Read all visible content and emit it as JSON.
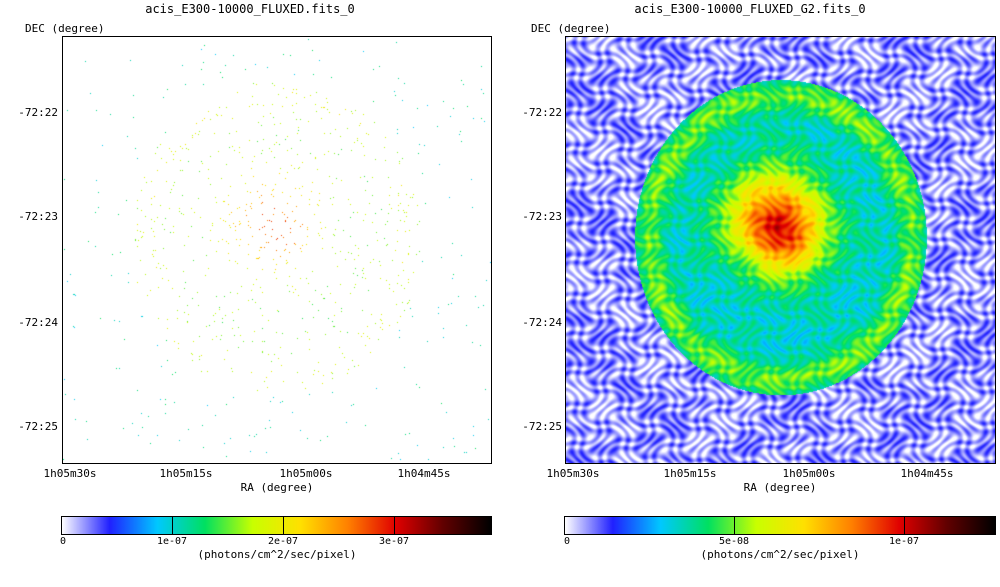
{
  "left_panel": {
    "title": "acis_E300-10000_FLUXED.fits_0",
    "y_axis_label": "DEC (degree)",
    "x_axis_label": "RA (degree)",
    "y_ticks": [
      "-72:22",
      "-72:23",
      "-72:24",
      "-72:25"
    ],
    "x_ticks": [
      "1h05m30s",
      "1h05m15s",
      "1h05m00s",
      "1h04m45s"
    ],
    "colorbar": {
      "units": "(photons/cm^2/sec/pixel)",
      "ticks": [
        "0",
        "1e-07",
        "2e-07",
        "3e-07"
      ]
    }
  },
  "right_panel": {
    "title": "acis_E300-10000_FLUXED_G2.fits_0",
    "y_axis_label": "DEC (degree)",
    "x_axis_label": "RA (degree)",
    "y_ticks": [
      "-72:22",
      "-72:23",
      "-72:24",
      "-72:25"
    ],
    "x_ticks": [
      "1h05m30s",
      "1h05m15s",
      "1h05m00s",
      "1h04m45s"
    ],
    "colorbar": {
      "units": "(photons/cm^2/sec/pixel)",
      "ticks": [
        "0",
        "5e-08",
        "1e-07"
      ]
    }
  },
  "colormap": [
    "#ffffff",
    "#2020ff",
    "#00c8ff",
    "#00e060",
    "#c8ff00",
    "#ffe000",
    "#ff8000",
    "#e00000",
    "#600000",
    "#000000"
  ]
}
